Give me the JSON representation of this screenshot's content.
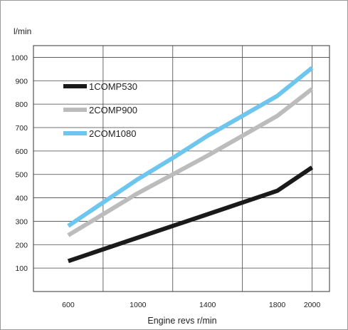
{
  "chart_data": {
    "type": "line",
    "title": "",
    "ylabel": "l/min",
    "xlabel": "Engine revs r/min",
    "x_ticks": [
      600,
      1000,
      1400,
      1800,
      2000
    ],
    "x_range": [
      400,
      2100
    ],
    "y_ticks": [
      100,
      200,
      300,
      400,
      500,
      600,
      700,
      800,
      900,
      1000
    ],
    "ylim": [
      0,
      1000
    ],
    "grid": true,
    "legend_position": "top-left",
    "series": [
      {
        "name": "1COMP530",
        "color": "#1a1a1a",
        "x": [
          600,
          1000,
          1400,
          1800,
          2000
        ],
        "y": [
          130,
          230,
          330,
          430,
          530
        ]
      },
      {
        "name": "2COMP900",
        "color": "#bcbcbc",
        "x": [
          600,
          1000,
          1400,
          1800,
          2000
        ],
        "y": [
          240,
          420,
          580,
          750,
          865
        ]
      },
      {
        "name": "2COM1080",
        "color": "#6ec6ee",
        "x": [
          600,
          800,
          1000,
          1200,
          1400,
          1600,
          1800,
          2000
        ],
        "y": [
          280,
          380,
          480,
          570,
          665,
          750,
          835,
          955
        ]
      }
    ]
  }
}
